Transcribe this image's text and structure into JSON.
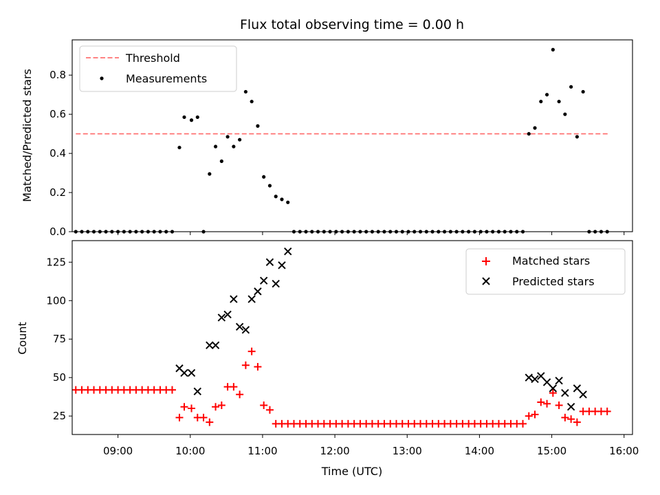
{
  "chart_data": [
    {
      "type": "scatter",
      "title": "Flux total observing time = 0.00 h",
      "xlabel": "",
      "ylabel": "Matched/Predicted stars",
      "xlim": [
        "08:22",
        "16:07"
      ],
      "ylim": [
        0,
        0.98
      ],
      "yticks": [
        0.0,
        0.2,
        0.4,
        0.6,
        0.8
      ],
      "legend_position": "top-left",
      "grid": false,
      "threshold": {
        "name": "Threshold",
        "value": 0.5,
        "x_range": [
          "08:25",
          "15:47"
        ],
        "color": "#ff7070",
        "style": "dashed"
      },
      "series": [
        {
          "name": "Measurements",
          "color": "#000000",
          "marker": "dot",
          "points": [
            [
              "08:25",
              0
            ],
            [
              "08:30",
              0
            ],
            [
              "08:35",
              0
            ],
            [
              "08:40",
              0
            ],
            [
              "08:45",
              0
            ],
            [
              "08:50",
              0
            ],
            [
              "08:55",
              0
            ],
            [
              "09:00",
              0
            ],
            [
              "09:05",
              0
            ],
            [
              "09:10",
              0
            ],
            [
              "09:15",
              0
            ],
            [
              "09:20",
              0
            ],
            [
              "09:25",
              0
            ],
            [
              "09:30",
              0
            ],
            [
              "09:35",
              0
            ],
            [
              "09:40",
              0
            ],
            [
              "09:45",
              0
            ],
            [
              "09:51",
              0.43
            ],
            [
              "09:55",
              0.585
            ],
            [
              "10:01",
              0.57
            ],
            [
              "10:06",
              0.585
            ],
            [
              "10:11",
              0
            ],
            [
              "10:16",
              0.295
            ],
            [
              "10:21",
              0.435
            ],
            [
              "10:26",
              0.36
            ],
            [
              "10:31",
              0.485
            ],
            [
              "10:36",
              0.435
            ],
            [
              "10:41",
              0.47
            ],
            [
              "10:46",
              0.715
            ],
            [
              "10:51",
              0.665
            ],
            [
              "10:56",
              0.54
            ],
            [
              "11:01",
              0.28
            ],
            [
              "11:06",
              0.235
            ],
            [
              "11:11",
              0.18
            ],
            [
              "11:16",
              0.165
            ],
            [
              "11:21",
              0.15
            ],
            [
              "11:26",
              0
            ],
            [
              "11:31",
              0
            ],
            [
              "11:36",
              0
            ],
            [
              "11:41",
              0
            ],
            [
              "11:46",
              0
            ],
            [
              "11:51",
              0
            ],
            [
              "11:56",
              0
            ],
            [
              "12:01",
              0
            ],
            [
              "12:06",
              0
            ],
            [
              "12:11",
              0
            ],
            [
              "12:16",
              0
            ],
            [
              "12:21",
              0
            ],
            [
              "12:26",
              0
            ],
            [
              "12:31",
              0
            ],
            [
              "12:36",
              0
            ],
            [
              "12:41",
              0
            ],
            [
              "12:46",
              0
            ],
            [
              "12:51",
              0
            ],
            [
              "12:56",
              0
            ],
            [
              "13:01",
              0
            ],
            [
              "13:06",
              0
            ],
            [
              "13:11",
              0
            ],
            [
              "13:16",
              0
            ],
            [
              "13:21",
              0
            ],
            [
              "13:26",
              0
            ],
            [
              "13:31",
              0
            ],
            [
              "13:36",
              0
            ],
            [
              "13:41",
              0
            ],
            [
              "13:46",
              0
            ],
            [
              "13:51",
              0
            ],
            [
              "13:56",
              0
            ],
            [
              "14:01",
              0
            ],
            [
              "14:06",
              0
            ],
            [
              "14:11",
              0
            ],
            [
              "14:16",
              0
            ],
            [
              "14:21",
              0
            ],
            [
              "14:26",
              0
            ],
            [
              "14:31",
              0
            ],
            [
              "14:36",
              0
            ],
            [
              "14:41",
              0.5
            ],
            [
              "14:46",
              0.53
            ],
            [
              "14:51",
              0.665
            ],
            [
              "14:56",
              0.7
            ],
            [
              "15:01",
              0.93
            ],
            [
              "15:06",
              0.665
            ],
            [
              "15:11",
              0.6
            ],
            [
              "15:16",
              0.74
            ],
            [
              "15:21",
              0.485
            ],
            [
              "15:26",
              0.715
            ],
            [
              "15:31",
              0
            ],
            [
              "15:36",
              0
            ],
            [
              "15:41",
              0
            ],
            [
              "15:46",
              0
            ]
          ]
        }
      ]
    },
    {
      "type": "scatter",
      "title": "",
      "xlabel": "Time (UTC)",
      "ylabel": "Count",
      "xlim": [
        "08:22",
        "16:07"
      ],
      "ylim": [
        13,
        139
      ],
      "yticks": [
        25,
        50,
        75,
        100,
        125
      ],
      "xticks": [
        "09:00",
        "10:00",
        "11:00",
        "12:00",
        "13:00",
        "14:00",
        "15:00",
        "16:00"
      ],
      "legend_position": "top-right",
      "grid": false,
      "series": [
        {
          "name": "Matched stars",
          "color": "#ff0000",
          "marker": "plus",
          "points": [
            [
              "08:25",
              42
            ],
            [
              "08:30",
              42
            ],
            [
              "08:35",
              42
            ],
            [
              "08:40",
              42
            ],
            [
              "08:45",
              42
            ],
            [
              "08:50",
              42
            ],
            [
              "08:55",
              42
            ],
            [
              "09:00",
              42
            ],
            [
              "09:05",
              42
            ],
            [
              "09:10",
              42
            ],
            [
              "09:15",
              42
            ],
            [
              "09:20",
              42
            ],
            [
              "09:25",
              42
            ],
            [
              "09:30",
              42
            ],
            [
              "09:35",
              42
            ],
            [
              "09:40",
              42
            ],
            [
              "09:45",
              42
            ],
            [
              "09:51",
              24
            ],
            [
              "09:55",
              31
            ],
            [
              "10:01",
              30
            ],
            [
              "10:06",
              24
            ],
            [
              "10:11",
              24
            ],
            [
              "10:16",
              21
            ],
            [
              "10:21",
              31
            ],
            [
              "10:26",
              32
            ],
            [
              "10:31",
              44
            ],
            [
              "10:36",
              44
            ],
            [
              "10:41",
              39
            ],
            [
              "10:46",
              58
            ],
            [
              "10:51",
              67
            ],
            [
              "10:56",
              57
            ],
            [
              "11:01",
              32
            ],
            [
              "11:06",
              29
            ],
            [
              "11:11",
              20
            ],
            [
              "11:16",
              20
            ],
            [
              "11:21",
              20
            ],
            [
              "11:26",
              20
            ],
            [
              "11:31",
              20
            ],
            [
              "11:36",
              20
            ],
            [
              "11:41",
              20
            ],
            [
              "11:46",
              20
            ],
            [
              "11:51",
              20
            ],
            [
              "11:56",
              20
            ],
            [
              "12:01",
              20
            ],
            [
              "12:06",
              20
            ],
            [
              "12:11",
              20
            ],
            [
              "12:16",
              20
            ],
            [
              "12:21",
              20
            ],
            [
              "12:26",
              20
            ],
            [
              "12:31",
              20
            ],
            [
              "12:36",
              20
            ],
            [
              "12:41",
              20
            ],
            [
              "12:46",
              20
            ],
            [
              "12:51",
              20
            ],
            [
              "12:56",
              20
            ],
            [
              "13:01",
              20
            ],
            [
              "13:06",
              20
            ],
            [
              "13:11",
              20
            ],
            [
              "13:16",
              20
            ],
            [
              "13:21",
              20
            ],
            [
              "13:26",
              20
            ],
            [
              "13:31",
              20
            ],
            [
              "13:36",
              20
            ],
            [
              "13:41",
              20
            ],
            [
              "13:46",
              20
            ],
            [
              "13:51",
              20
            ],
            [
              "13:56",
              20
            ],
            [
              "14:01",
              20
            ],
            [
              "14:06",
              20
            ],
            [
              "14:11",
              20
            ],
            [
              "14:16",
              20
            ],
            [
              "14:21",
              20
            ],
            [
              "14:26",
              20
            ],
            [
              "14:31",
              20
            ],
            [
              "14:36",
              20
            ],
            [
              "14:41",
              25
            ],
            [
              "14:46",
              26
            ],
            [
              "14:51",
              34
            ],
            [
              "14:56",
              33
            ],
            [
              "15:01",
              40
            ],
            [
              "15:06",
              32
            ],
            [
              "15:11",
              24
            ],
            [
              "15:16",
              23
            ],
            [
              "15:21",
              21
            ],
            [
              "15:26",
              28
            ],
            [
              "15:31",
              28
            ],
            [
              "15:36",
              28
            ],
            [
              "15:41",
              28
            ],
            [
              "15:46",
              28
            ]
          ]
        },
        {
          "name": "Predicted stars",
          "color": "#000000",
          "marker": "x",
          "points": [
            [
              "09:51",
              56
            ],
            [
              "09:55",
              53
            ],
            [
              "10:01",
              53
            ],
            [
              "10:06",
              41
            ],
            [
              "10:16",
              71
            ],
            [
              "10:21",
              71
            ],
            [
              "10:26",
              89
            ],
            [
              "10:31",
              91
            ],
            [
              "10:36",
              101
            ],
            [
              "10:41",
              83
            ],
            [
              "10:46",
              81
            ],
            [
              "10:51",
              101
            ],
            [
              "10:56",
              106
            ],
            [
              "11:01",
              113
            ],
            [
              "11:06",
              125
            ],
            [
              "11:11",
              111
            ],
            [
              "11:16",
              123
            ],
            [
              "11:21",
              132
            ],
            [
              "14:41",
              50
            ],
            [
              "14:46",
              49
            ],
            [
              "14:51",
              51
            ],
            [
              "14:56",
              47
            ],
            [
              "15:01",
              43
            ],
            [
              "15:06",
              48
            ],
            [
              "15:11",
              40
            ],
            [
              "15:16",
              31
            ],
            [
              "15:21",
              43
            ],
            [
              "15:26",
              39
            ]
          ]
        }
      ]
    }
  ]
}
